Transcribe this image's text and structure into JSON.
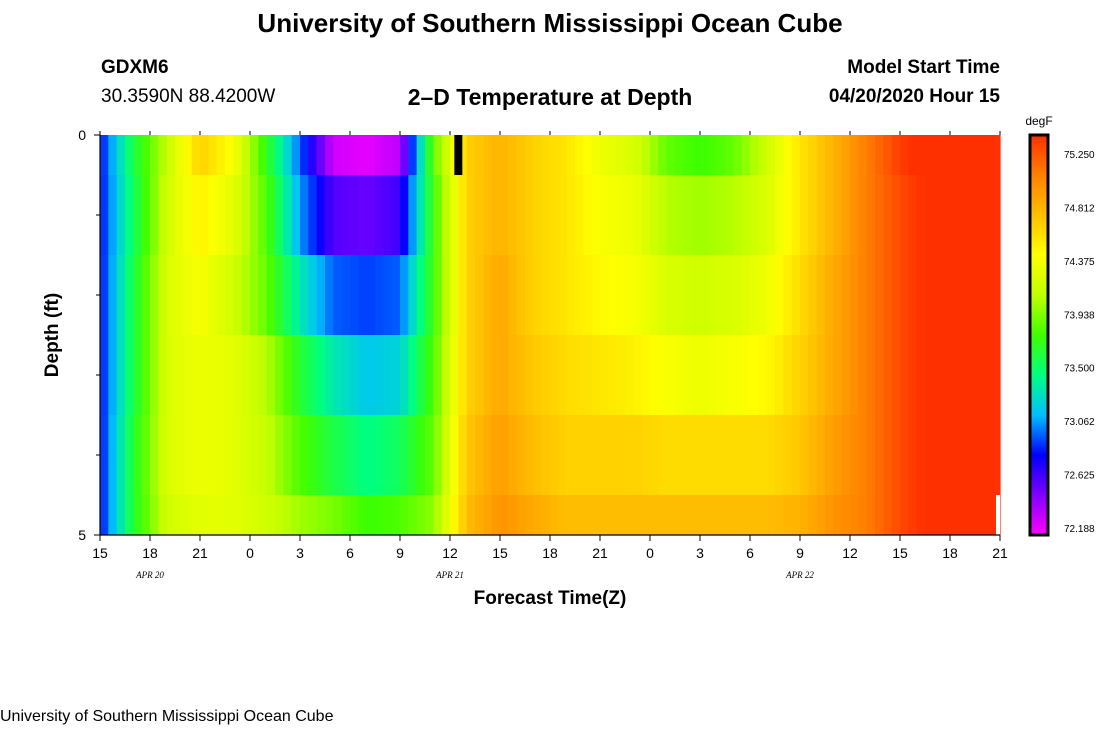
{
  "header": {
    "title_top": "University of Southern Mississippi Ocean Cube",
    "title_bottom": "University of Southern Mississippi Ocean Cube",
    "station": "GDXM6",
    "coords": "30.3590N 88.4200W",
    "subtitle": "2–D Temperature at Depth",
    "model_label": "Model Start Time",
    "model_time": "04/20/2020 Hour 15"
  },
  "chart_data": {
    "type": "heatmap",
    "xlabel": "Forecast Time(Z)",
    "ylabel": "Depth (ft)",
    "x_ticks": [
      "15",
      "18",
      "21",
      "0",
      "3",
      "6",
      "9",
      "12",
      "15",
      "18",
      "21",
      "0",
      "3",
      "6",
      "9",
      "12",
      "15",
      "18",
      "21"
    ],
    "date_labels": [
      {
        "text": "APR  20",
        "at_tick": 1
      },
      {
        "text": "APR  21",
        "at_tick": 7
      },
      {
        "text": "APR  22",
        "at_tick": 14
      }
    ],
    "y_tick_labels": [
      {
        "text": "0",
        "depth": 0
      },
      {
        "text": "5",
        "depth": 5
      }
    ],
    "y_minor_ticks": [
      1,
      2,
      3,
      4
    ],
    "depth_range": [
      0,
      5
    ],
    "colorbar": {
      "unit": "degF",
      "min": 72.188,
      "max": 75.25,
      "ticks": [
        "75.250",
        "74.812",
        "74.375",
        "73.938",
        "73.500",
        "73.062",
        "72.625",
        "72.188"
      ],
      "colors": [
        "#ff00ff",
        "#8000ff",
        "#0000ff",
        "#00c0ff",
        "#00ff80",
        "#40ff00",
        "#c0ff00",
        "#ffff00",
        "#ffc000",
        "#ff8000",
        "#ff3000"
      ]
    },
    "hours": [
      0,
      2,
      4,
      6,
      8,
      10,
      12,
      14,
      16,
      18,
      20,
      22,
      24,
      26,
      28,
      30,
      32,
      34,
      36,
      38,
      40,
      42,
      44,
      46,
      48,
      50,
      52,
      54
    ],
    "layers": [
      {
        "depth_top": 0,
        "depth_bottom": 0.5,
        "temps": [
          72.8,
          73.55,
          74.05,
          74.55,
          74.3,
          73.65,
          72.95,
          72.3,
          72.25,
          72.35,
          73.8,
          74.55,
          74.7,
          74.55,
          74.45,
          74.25,
          74.15,
          73.8,
          73.7,
          73.8,
          74.1,
          74.45,
          74.7,
          74.95,
          75.2,
          75.35,
          75.4,
          75.45
        ]
      },
      {
        "depth_top": 0.5,
        "depth_bottom": 1.5,
        "temps": [
          72.8,
          73.5,
          74.1,
          74.4,
          74.2,
          73.75,
          73.05,
          72.6,
          72.55,
          72.65,
          73.7,
          74.55,
          74.7,
          74.55,
          74.45,
          74.3,
          74.25,
          74.0,
          73.95,
          74.0,
          74.15,
          74.45,
          74.7,
          74.95,
          75.15,
          75.3,
          75.4,
          75.45
        ]
      },
      {
        "depth_top": 1.5,
        "depth_bottom": 2.5,
        "temps": [
          72.8,
          73.55,
          74.15,
          74.3,
          74.1,
          73.8,
          73.3,
          72.95,
          72.9,
          72.95,
          73.7,
          74.55,
          74.75,
          74.55,
          74.45,
          74.35,
          74.3,
          74.15,
          74.1,
          74.15,
          74.25,
          74.5,
          74.75,
          74.95,
          75.15,
          75.3,
          75.4,
          75.45
        ]
      },
      {
        "depth_top": 2.5,
        "depth_bottom": 3.5,
        "temps": [
          72.8,
          73.55,
          74.15,
          74.25,
          74.2,
          74.0,
          73.6,
          73.3,
          73.15,
          73.2,
          73.75,
          74.55,
          74.75,
          74.6,
          74.5,
          74.45,
          74.4,
          74.3,
          74.25,
          74.3,
          74.35,
          74.55,
          74.75,
          74.95,
          75.15,
          75.3,
          75.4,
          75.45
        ]
      },
      {
        "depth_top": 3.5,
        "depth_bottom": 4.5,
        "temps": [
          72.8,
          73.6,
          74.15,
          74.25,
          74.2,
          74.05,
          73.75,
          73.55,
          73.4,
          73.5,
          73.8,
          74.6,
          74.8,
          74.65,
          74.55,
          74.55,
          74.55,
          74.5,
          74.5,
          74.5,
          74.5,
          74.6,
          74.8,
          74.95,
          75.15,
          75.3,
          75.4,
          75.45
        ]
      },
      {
        "depth_top": 4.5,
        "depth_bottom": 5.0,
        "temps": [
          72.8,
          73.6,
          74.1,
          74.2,
          74.2,
          74.1,
          73.95,
          73.85,
          73.7,
          73.75,
          73.9,
          74.65,
          74.85,
          74.75,
          74.65,
          74.65,
          74.65,
          74.65,
          74.65,
          74.65,
          74.65,
          74.7,
          74.85,
          74.95,
          75.15,
          75.3,
          75.4,
          75.45
        ]
      }
    ],
    "marker": {
      "hour": 21.5,
      "depth_top": 0,
      "depth_bottom": 0.5
    }
  }
}
